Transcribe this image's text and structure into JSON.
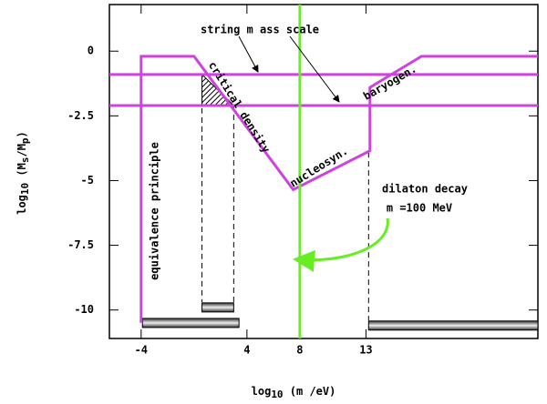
{
  "chart_data": {
    "type": "line",
    "xlabel": [
      "log",
      "10",
      " (m /eV)"
    ],
    "ylabel": [
      "log",
      "10",
      " (M",
      "s",
      "/M",
      "p",
      ")"
    ],
    "xlim": [
      -6.4,
      26
    ],
    "ylim": [
      -11.1,
      1.8
    ],
    "xticks": [
      -4,
      4,
      8,
      13
    ],
    "yticks": [
      0,
      -2.5,
      -5,
      -7.5,
      -10
    ],
    "series": [
      {
        "color": "#cc44dd",
        "x": [
          -4,
          -4,
          0,
          7.5,
          13.3,
          13.3,
          17.2,
          26
        ],
        "y": [
          -10.5,
          -0.2,
          -0.2,
          -5.35,
          -3.85,
          -1.4,
          -0.2,
          -0.2
        ]
      },
      {
        "color": "#cc44dd",
        "x": [
          -6.4,
          26
        ],
        "y": [
          -0.9,
          -0.9
        ]
      },
      {
        "color": "#cc44dd",
        "x": [
          -6.4,
          26
        ],
        "y": [
          -2.1,
          -2.1
        ]
      },
      {
        "color": "#66ee22",
        "x": [
          8,
          8
        ],
        "y": [
          1.8,
          -11.1
        ]
      }
    ],
    "hatched_region": {
      "x": [
        0.6,
        0.6,
        3.0
      ],
      "y": [
        -0.9,
        -2.1,
        -2.1
      ]
    },
    "dashed_lines": [
      {
        "x": 0.6,
        "y": [
          -1.5,
          -9.7
        ]
      },
      {
        "x": 3.0,
        "y": [
          -2.1,
          -9.7
        ]
      },
      {
        "x": 13.2,
        "y": [
          -3.9,
          -10.4
        ]
      }
    ],
    "bars": [
      {
        "x": [
          -3.9,
          3.4
        ],
        "y": -10.5
      },
      {
        "x": [
          0.6,
          3.0
        ],
        "y": -9.9
      },
      {
        "x": [
          13.2,
          26
        ],
        "y": -10.6
      }
    ],
    "annotations": [
      "string m ass scale",
      "baryogen.",
      "critical density",
      "nucleosyn.",
      "equivalence principle",
      "dilaton decay",
      "m =100 MeV"
    ]
  }
}
